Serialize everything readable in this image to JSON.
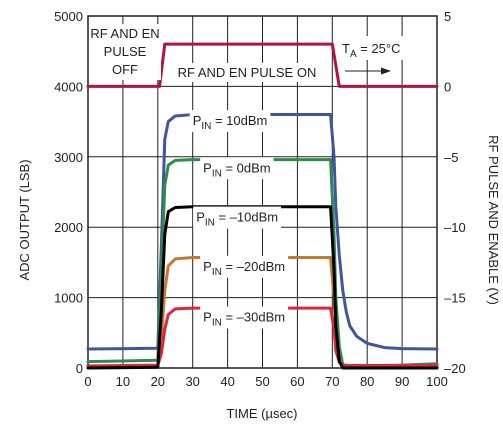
{
  "chart_data": {
    "type": "line",
    "xlabel": "TIME (µsec)",
    "ylabel": "ADC OUTPUT (LSB)",
    "y2label": "RF PULSE AND ENABLE (V)",
    "xlim": [
      0,
      100
    ],
    "ylim": [
      0,
      5000
    ],
    "y2lim": [
      -20,
      5
    ],
    "x_ticks": [
      0,
      10,
      20,
      30,
      40,
      50,
      60,
      70,
      80,
      90,
      100
    ],
    "y_ticks": [
      0,
      1000,
      2000,
      3000,
      4000,
      5000
    ],
    "y2_ticks": [
      -20,
      -15,
      -10,
      -5,
      0,
      5
    ],
    "grid": true,
    "colors": {
      "pulse": "#b0124a",
      "p10": "#3f55a4",
      "p0": "#2e8b4e",
      "pm10": "#000000",
      "pm20": "#c47a2c",
      "pm30": "#e0243a",
      "grid": "#231f20"
    },
    "series": [
      {
        "key": "pulse",
        "axis": "y2",
        "x": [
          0,
          20.5,
          22,
          70,
          72,
          100
        ],
        "values": [
          0,
          0,
          3,
          3,
          0,
          0
        ]
      },
      {
        "key": "p10",
        "axis": "y",
        "x": [
          0,
          20,
          21,
          22,
          23,
          25,
          30,
          69.5,
          70.5,
          71,
          72,
          73,
          74,
          75,
          77,
          80,
          85,
          90,
          100
        ],
        "values": [
          270,
          280,
          1700,
          3250,
          3500,
          3580,
          3600,
          3600,
          3000,
          2300,
          1600,
          1100,
          800,
          600,
          450,
          350,
          290,
          275,
          270
        ]
      },
      {
        "key": "p0",
        "axis": "y",
        "x": [
          0,
          20,
          21,
          22,
          23,
          25,
          30,
          69.5,
          70.5,
          71,
          72,
          73,
          75,
          80,
          90,
          100
        ],
        "values": [
          90,
          110,
          1300,
          2600,
          2880,
          2950,
          2960,
          2960,
          1900,
          1000,
          300,
          50,
          20,
          25,
          40,
          60
        ]
      },
      {
        "key": "pm10",
        "axis": "y",
        "x": [
          0,
          20,
          21,
          22,
          23,
          25,
          30,
          69.5,
          70.5,
          71,
          72,
          73,
          75,
          100
        ],
        "values": [
          0,
          10,
          800,
          1900,
          2220,
          2280,
          2290,
          2290,
          1400,
          600,
          100,
          0,
          0,
          0
        ]
      },
      {
        "key": "pm20",
        "axis": "y",
        "x": [
          0,
          20,
          21,
          22,
          23,
          25,
          30,
          69.5,
          70.5,
          71,
          72,
          73,
          75,
          100
        ],
        "values": [
          20,
          30,
          400,
          1100,
          1450,
          1550,
          1570,
          1570,
          1000,
          450,
          120,
          30,
          20,
          20
        ]
      },
      {
        "key": "pm30",
        "axis": "y",
        "x": [
          0,
          20,
          21,
          22,
          23,
          25,
          30,
          69.5,
          70.5,
          71,
          72,
          73,
          75,
          100
        ],
        "values": [
          30,
          40,
          200,
          550,
          760,
          840,
          850,
          850,
          550,
          250,
          80,
          40,
          35,
          35
        ]
      }
    ],
    "annotations": {
      "rf_off_1": "RF AND EN",
      "rf_off_2": "PULSE",
      "rf_off_3": "OFF",
      "rf_on": "RF AND EN PULSE ON",
      "ta": "T",
      "ta_sub": "A",
      "ta_rest": " = 25°C",
      "pin_label": "P",
      "pin_sub": "IN",
      "p10_val": " = 10dBm",
      "p0_val": " = 0dBm",
      "pm10_val": " = –10dBm",
      "pm20_val": " = –20dBm",
      "pm30_val": " = –30dBm"
    }
  }
}
